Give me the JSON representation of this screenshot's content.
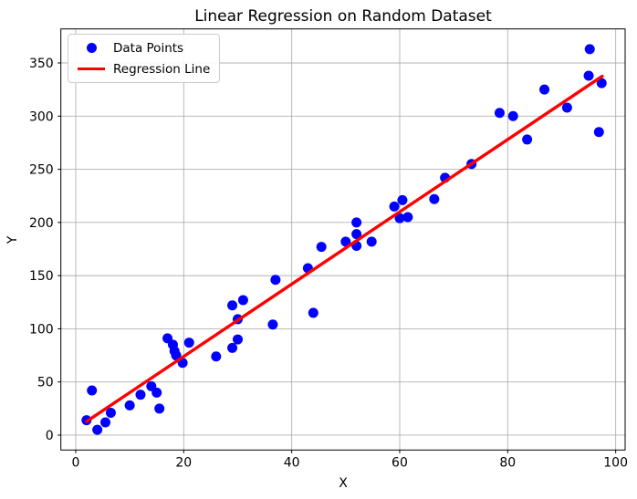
{
  "chart_data": {
    "type": "scatter",
    "title": "Linear Regression on Random Dataset",
    "xlabel": "X",
    "ylabel": "Y",
    "xlim": [
      -2.75,
      101.75
    ],
    "ylim": [
      -14,
      382
    ],
    "x_ticks": [
      0,
      20,
      40,
      60,
      80,
      100
    ],
    "y_ticks": [
      0,
      50,
      100,
      150,
      200,
      250,
      300,
      350
    ],
    "grid": true,
    "legend_position": "upper left",
    "series": [
      {
        "name": "Data Points",
        "type": "scatter",
        "color": "#0000ff",
        "points": [
          [
            2,
            14
          ],
          [
            3,
            42
          ],
          [
            4,
            5
          ],
          [
            5.5,
            12
          ],
          [
            6.5,
            21
          ],
          [
            10,
            28
          ],
          [
            12,
            38
          ],
          [
            14,
            46
          ],
          [
            15,
            40
          ],
          [
            15.5,
            25
          ],
          [
            17,
            91
          ],
          [
            18,
            85
          ],
          [
            18.3,
            79
          ],
          [
            18.6,
            75
          ],
          [
            19.8,
            68
          ],
          [
            21,
            87
          ],
          [
            26,
            74
          ],
          [
            29,
            82
          ],
          [
            29,
            122
          ],
          [
            30,
            90
          ],
          [
            30,
            109
          ],
          [
            31,
            127
          ],
          [
            36.5,
            104
          ],
          [
            37,
            146
          ],
          [
            43,
            157
          ],
          [
            44,
            115
          ],
          [
            45.5,
            177
          ],
          [
            50,
            182
          ],
          [
            52,
            178
          ],
          [
            52,
            189
          ],
          [
            52,
            200
          ],
          [
            54.8,
            182
          ],
          [
            59,
            215
          ],
          [
            60,
            204
          ],
          [
            60.5,
            221
          ],
          [
            61.5,
            205
          ],
          [
            66.4,
            222
          ],
          [
            68.4,
            242
          ],
          [
            73.3,
            255
          ],
          [
            78.5,
            303
          ],
          [
            81,
            300
          ],
          [
            83.6,
            278
          ],
          [
            86.8,
            325
          ],
          [
            91,
            308
          ],
          [
            95,
            338
          ],
          [
            95.2,
            363
          ],
          [
            96.9,
            285
          ],
          [
            97.4,
            331
          ]
        ]
      },
      {
        "name": "Regression Line",
        "type": "line",
        "color": "#ff0000",
        "slope": 3.4,
        "intercept": 6.0,
        "x_start": 2,
        "x_end": 97.5
      }
    ],
    "style": {
      "background": "#ffffff",
      "grid_color": "#b0b0b0",
      "spine_color": "#000000",
      "tick_label_color": "#000000",
      "legend_border_color": "#cccccc",
      "marker_radius": 5.5,
      "line_width": 3.4
    }
  }
}
